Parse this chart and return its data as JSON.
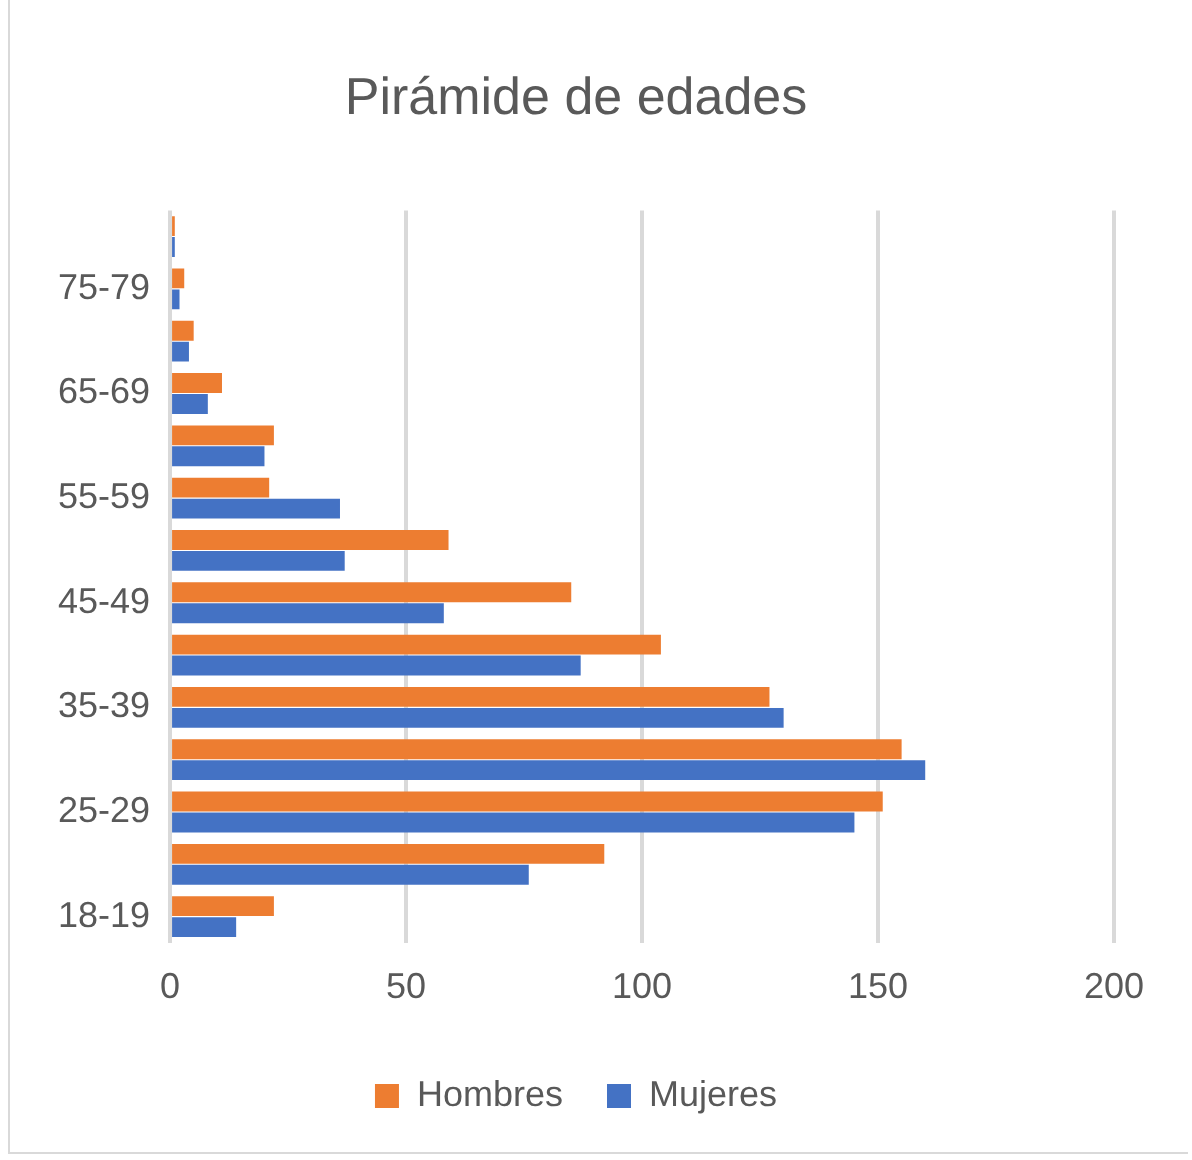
{
  "chart_data": {
    "type": "bar",
    "orientation": "horizontal",
    "title": "Pirámide de edades",
    "categories": [
      null,
      "75-79",
      null,
      "65-69",
      null,
      "55-59",
      null,
      "45-49",
      null,
      "35-39",
      null,
      "25-29",
      null,
      "18-19"
    ],
    "series": [
      {
        "name": "Hombres",
        "color": "#ed7d31",
        "values": [
          1,
          3,
          5,
          11,
          22,
          21,
          59,
          85,
          104,
          127,
          155,
          151,
          92,
          22
        ]
      },
      {
        "name": "Mujeres",
        "color": "#4472c4",
        "values": [
          1,
          2,
          4,
          8,
          20,
          36,
          37,
          58,
          87,
          130,
          160,
          145,
          76,
          14
        ]
      }
    ],
    "xlim": [
      0,
      200
    ],
    "xticks": [
      0,
      50,
      100,
      150,
      200
    ],
    "grid": "x",
    "legend": "bottom"
  }
}
